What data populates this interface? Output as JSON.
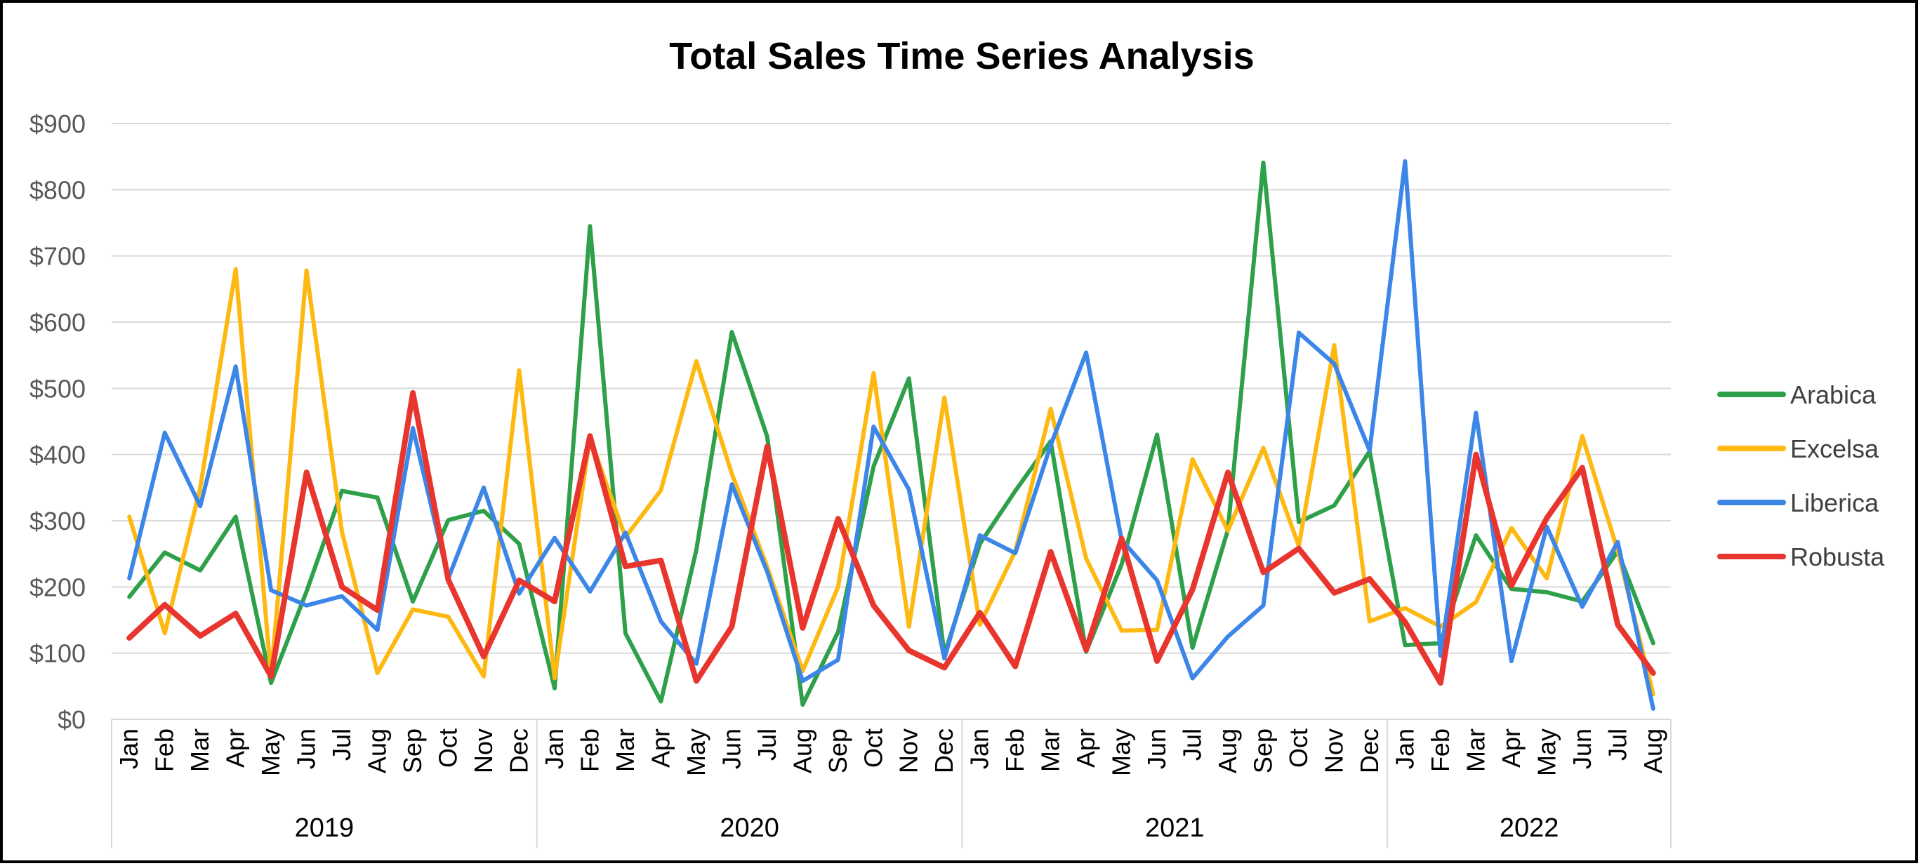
{
  "chart_data": {
    "type": "line",
    "title": "Total Sales Time Series Analysis",
    "xlabel": "",
    "ylabel": "",
    "ylim": [
      0,
      900
    ],
    "y_ticks": [
      "$0",
      "$100",
      "$200",
      "$300",
      "$400",
      "$500",
      "$600",
      "$700",
      "$800",
      "$900"
    ],
    "y_tick_values": [
      0,
      100,
      200,
      300,
      400,
      500,
      600,
      700,
      800,
      900
    ],
    "grid": true,
    "legend_position": "right",
    "categories": [
      "Jan",
      "Feb",
      "Mar",
      "Apr",
      "May",
      "Jun",
      "Jul",
      "Aug",
      "Sep",
      "Oct",
      "Nov",
      "Dec",
      "Jan",
      "Feb",
      "Mar",
      "Apr",
      "May",
      "Jun",
      "Jul",
      "Aug",
      "Sep",
      "Oct",
      "Nov",
      "Dec",
      "Jan",
      "Feb",
      "Mar",
      "Apr",
      "May",
      "Jun",
      "Jul",
      "Aug",
      "Sep",
      "Oct",
      "Nov",
      "Dec",
      "Jan",
      "Feb",
      "Mar",
      "Apr",
      "May",
      "Jun",
      "Jul",
      "Aug"
    ],
    "year_groups": [
      {
        "label": "2019",
        "count": 12
      },
      {
        "label": "2020",
        "count": 12
      },
      {
        "label": "2021",
        "count": 12
      },
      {
        "label": "2022",
        "count": 8
      }
    ],
    "series": [
      {
        "name": "Arabica",
        "color": "#2ea04a",
        "values": [
          185,
          252,
          225,
          306,
          55,
          193,
          345,
          335,
          178,
          301,
          315,
          265,
          47,
          745,
          130,
          27,
          256,
          585,
          427,
          22,
          132,
          382,
          515,
          98,
          265,
          345,
          420,
          102,
          234,
          430,
          108,
          286,
          841,
          298,
          323,
          405,
          112,
          115,
          278,
          197,
          192,
          178,
          254,
          115
        ]
      },
      {
        "name": "Excelsa",
        "color": "#fdb912",
        "values": [
          306,
          130,
          350,
          680,
          65,
          678,
          283,
          70,
          166,
          155,
          65,
          527,
          62,
          425,
          275,
          346,
          541,
          371,
          230,
          73,
          200,
          523,
          140,
          486,
          143,
          254,
          469,
          243,
          134,
          135,
          393,
          285,
          410,
          262,
          565,
          148,
          168,
          140,
          177,
          289,
          213,
          428,
          255,
          38
        ]
      },
      {
        "name": "Liberica",
        "color": "#3c86e8",
        "values": [
          213,
          433,
          322,
          533,
          195,
          172,
          186,
          135,
          440,
          213,
          350,
          190,
          274,
          193,
          282,
          148,
          84,
          355,
          223,
          58,
          90,
          442,
          347,
          92,
          278,
          251,
          414,
          554,
          271,
          210,
          62,
          125,
          172,
          584,
          537,
          406,
          843,
          96,
          463,
          88,
          291,
          170,
          268,
          16
        ]
      },
      {
        "name": "Robusta",
        "color": "#e8352e",
        "values": [
          123,
          173,
          126,
          160,
          65,
          373,
          200,
          165,
          493,
          211,
          95,
          210,
          178,
          428,
          231,
          240,
          58,
          140,
          412,
          138,
          303,
          172,
          104,
          78,
          161,
          80,
          253,
          105,
          273,
          88,
          196,
          373,
          222,
          258,
          191,
          212,
          147,
          55,
          400,
          202,
          304,
          380,
          143,
          70
        ]
      }
    ]
  }
}
